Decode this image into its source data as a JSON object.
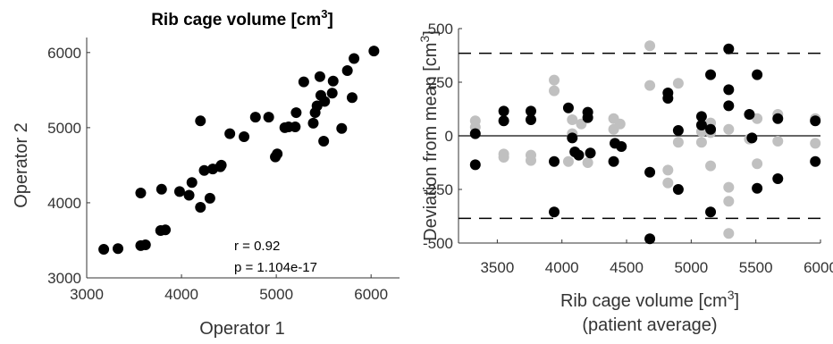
{
  "chart_data": [
    {
      "type": "scatter",
      "title": "Rib cage volume [cm",
      "title_sup": "3",
      "title_end": "]",
      "xlabel": "Operator 1",
      "ylabel": "Operator 2",
      "xlim": [
        3000,
        6300
      ],
      "ylim": [
        3000,
        6200
      ],
      "xticks": [
        "3000",
        "4000",
        "5000",
        "6000"
      ],
      "yticks": [
        "3000",
        "4000",
        "5000",
        "6000"
      ],
      "annotations": [
        "r = 0.92",
        "p = 1.104e-17"
      ],
      "marker_color": "#000000",
      "points": [
        {
          "x": 3180,
          "y": 3380
        },
        {
          "x": 3330,
          "y": 3390
        },
        {
          "x": 3570,
          "y": 3430
        },
        {
          "x": 3620,
          "y": 3440
        },
        {
          "x": 3780,
          "y": 3630
        },
        {
          "x": 3830,
          "y": 3640
        },
        {
          "x": 3570,
          "y": 4130
        },
        {
          "x": 3790,
          "y": 4180
        },
        {
          "x": 3980,
          "y": 4150
        },
        {
          "x": 4080,
          "y": 4100
        },
        {
          "x": 4110,
          "y": 4270
        },
        {
          "x": 4200,
          "y": 3940
        },
        {
          "x": 4300,
          "y": 4060
        },
        {
          "x": 4240,
          "y": 4430
        },
        {
          "x": 4330,
          "y": 4450
        },
        {
          "x": 4410,
          "y": 4480
        },
        {
          "x": 4420,
          "y": 4500
        },
        {
          "x": 4200,
          "y": 5090
        },
        {
          "x": 4510,
          "y": 4920
        },
        {
          "x": 4660,
          "y": 4880
        },
        {
          "x": 4780,
          "y": 5140
        },
        {
          "x": 4920,
          "y": 5140
        },
        {
          "x": 4990,
          "y": 4610
        },
        {
          "x": 5010,
          "y": 4650
        },
        {
          "x": 5090,
          "y": 5000
        },
        {
          "x": 5130,
          "y": 5010
        },
        {
          "x": 5200,
          "y": 5010
        },
        {
          "x": 5210,
          "y": 5200
        },
        {
          "x": 5290,
          "y": 5610
        },
        {
          "x": 5390,
          "y": 5060
        },
        {
          "x": 5410,
          "y": 5200
        },
        {
          "x": 5430,
          "y": 5290
        },
        {
          "x": 5470,
          "y": 5430
        },
        {
          "x": 5460,
          "y": 5680
        },
        {
          "x": 5500,
          "y": 4820
        },
        {
          "x": 5510,
          "y": 5350
        },
        {
          "x": 5590,
          "y": 5460
        },
        {
          "x": 5600,
          "y": 5620
        },
        {
          "x": 5690,
          "y": 4990
        },
        {
          "x": 5750,
          "y": 5760
        },
        {
          "x": 5800,
          "y": 5400
        },
        {
          "x": 5820,
          "y": 5920
        },
        {
          "x": 6030,
          "y": 6020
        }
      ]
    },
    {
      "type": "scatter",
      "xlabel": "Rib cage volume [cm",
      "xlabel_sup": "3",
      "xlabel_end": "]",
      "xlabel2": "(patient average)",
      "ylabel": "Deviation from mean [cm",
      "ylabel_sup": "3",
      "ylabel_end": "]",
      "xlim": [
        3200,
        6000
      ],
      "ylim": [
        -500,
        500
      ],
      "xticks": [
        "3500",
        "4000",
        "4500",
        "5000",
        "5500",
        "6000"
      ],
      "yticks": [
        "-500",
        "-250",
        "0",
        "250",
        "500"
      ],
      "mean_line": 0,
      "limits_of_agreement": [
        -385,
        385
      ],
      "series": [
        {
          "color": "#000000",
          "points": [
            {
              "x": 3330,
              "y": 10
            },
            {
              "x": 3330,
              "y": -135
            },
            {
              "x": 3550,
              "y": 115
            },
            {
              "x": 3550,
              "y": 70
            },
            {
              "x": 3760,
              "y": 115
            },
            {
              "x": 3760,
              "y": 75
            },
            {
              "x": 3940,
              "y": -355
            },
            {
              "x": 3940,
              "y": -120
            },
            {
              "x": 4050,
              "y": 130
            },
            {
              "x": 4080,
              "y": -10
            },
            {
              "x": 4100,
              "y": -75
            },
            {
              "x": 4130,
              "y": -90
            },
            {
              "x": 4200,
              "y": 110
            },
            {
              "x": 4220,
              "y": -80
            },
            {
              "x": 4200,
              "y": 85
            },
            {
              "x": 4400,
              "y": -120
            },
            {
              "x": 4410,
              "y": -35
            },
            {
              "x": 4460,
              "y": -50
            },
            {
              "x": 4680,
              "y": -480
            },
            {
              "x": 4680,
              "y": -170
            },
            {
              "x": 4820,
              "y": 175
            },
            {
              "x": 4820,
              "y": 200
            },
            {
              "x": 4900,
              "y": 25
            },
            {
              "x": 4900,
              "y": -250
            },
            {
              "x": 5080,
              "y": 90
            },
            {
              "x": 5080,
              "y": 50
            },
            {
              "x": 5150,
              "y": 285
            },
            {
              "x": 5150,
              "y": 30
            },
            {
              "x": 5150,
              "y": -355
            },
            {
              "x": 5290,
              "y": 405
            },
            {
              "x": 5290,
              "y": 215
            },
            {
              "x": 5290,
              "y": 140
            },
            {
              "x": 5450,
              "y": 100
            },
            {
              "x": 5470,
              "y": -10
            },
            {
              "x": 5510,
              "y": 285
            },
            {
              "x": 5510,
              "y": -245
            },
            {
              "x": 5670,
              "y": 80
            },
            {
              "x": 5670,
              "y": -200
            },
            {
              "x": 5960,
              "y": 70
            },
            {
              "x": 5960,
              "y": -120
            }
          ]
        },
        {
          "color": "#c0c0c0",
          "points": [
            {
              "x": 3330,
              "y": 70
            },
            {
              "x": 3330,
              "y": 40
            },
            {
              "x": 3550,
              "y": -85
            },
            {
              "x": 3550,
              "y": -100
            },
            {
              "x": 3760,
              "y": -90
            },
            {
              "x": 3760,
              "y": -115
            },
            {
              "x": 3940,
              "y": 260
            },
            {
              "x": 3940,
              "y": 210
            },
            {
              "x": 4050,
              "y": -120
            },
            {
              "x": 4080,
              "y": 10
            },
            {
              "x": 4080,
              "y": 75
            },
            {
              "x": 4150,
              "y": 55
            },
            {
              "x": 4200,
              "y": -125
            },
            {
              "x": 4400,
              "y": 80
            },
            {
              "x": 4400,
              "y": 30
            },
            {
              "x": 4450,
              "y": 55
            },
            {
              "x": 4680,
              "y": 420
            },
            {
              "x": 4680,
              "y": 235
            },
            {
              "x": 4820,
              "y": -160
            },
            {
              "x": 4820,
              "y": -220
            },
            {
              "x": 4900,
              "y": 245
            },
            {
              "x": 4900,
              "y": -30
            },
            {
              "x": 5080,
              "y": 20
            },
            {
              "x": 5080,
              "y": -30
            },
            {
              "x": 5150,
              "y": 60
            },
            {
              "x": 5150,
              "y": -140
            },
            {
              "x": 5150,
              "y": 15
            },
            {
              "x": 5290,
              "y": -240
            },
            {
              "x": 5290,
              "y": -305
            },
            {
              "x": 5290,
              "y": -455
            },
            {
              "x": 5290,
              "y": 30
            },
            {
              "x": 5450,
              "y": -15
            },
            {
              "x": 5510,
              "y": 80
            },
            {
              "x": 5510,
              "y": -130
            },
            {
              "x": 5670,
              "y": 100
            },
            {
              "x": 5670,
              "y": -25
            },
            {
              "x": 5960,
              "y": 80
            },
            {
              "x": 5960,
              "y": -35
            }
          ]
        }
      ]
    }
  ]
}
